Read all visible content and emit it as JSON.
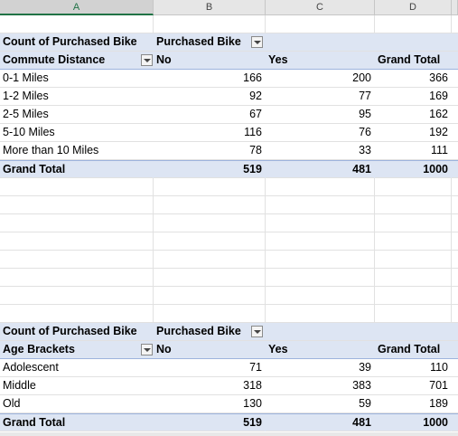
{
  "columns": [
    "A",
    "B",
    "C",
    "D"
  ],
  "pivot1": {
    "measure": "Count of Purchased Bike",
    "col_field": "Purchased Bike",
    "row_field": "Commute Distance",
    "col_labels": [
      "No",
      "Yes",
      "Grand Total"
    ],
    "rows": [
      {
        "label": "0-1 Miles",
        "no": "166",
        "yes": "200",
        "total": "366"
      },
      {
        "label": "1-2 Miles",
        "no": "92",
        "yes": "77",
        "total": "169"
      },
      {
        "label": "2-5 Miles",
        "no": "67",
        "yes": "95",
        "total": "162"
      },
      {
        "label": "5-10 Miles",
        "no": "116",
        "yes": "76",
        "total": "192"
      },
      {
        "label": "More than 10 Miles",
        "no": "78",
        "yes": "33",
        "total": "111"
      }
    ],
    "grand_total": {
      "label": "Grand Total",
      "no": "519",
      "yes": "481",
      "total": "1000"
    }
  },
  "pivot2": {
    "measure": "Count of Purchased Bike",
    "col_field": "Purchased Bike",
    "row_field": "Age Brackets",
    "col_labels": [
      "No",
      "Yes",
      "Grand Total"
    ],
    "rows": [
      {
        "label": "Adolescent",
        "no": "71",
        "yes": "39",
        "total": "110"
      },
      {
        "label": "Middle",
        "no": "318",
        "yes": "383",
        "total": "701"
      },
      {
        "label": "Old",
        "no": "130",
        "yes": "59",
        "total": "189"
      }
    ],
    "grand_total": {
      "label": "Grand Total",
      "no": "519",
      "yes": "481",
      "total": "1000"
    }
  },
  "colors": {
    "pivot_header_bg": "#dde5f3",
    "selected_column": "#217346"
  }
}
